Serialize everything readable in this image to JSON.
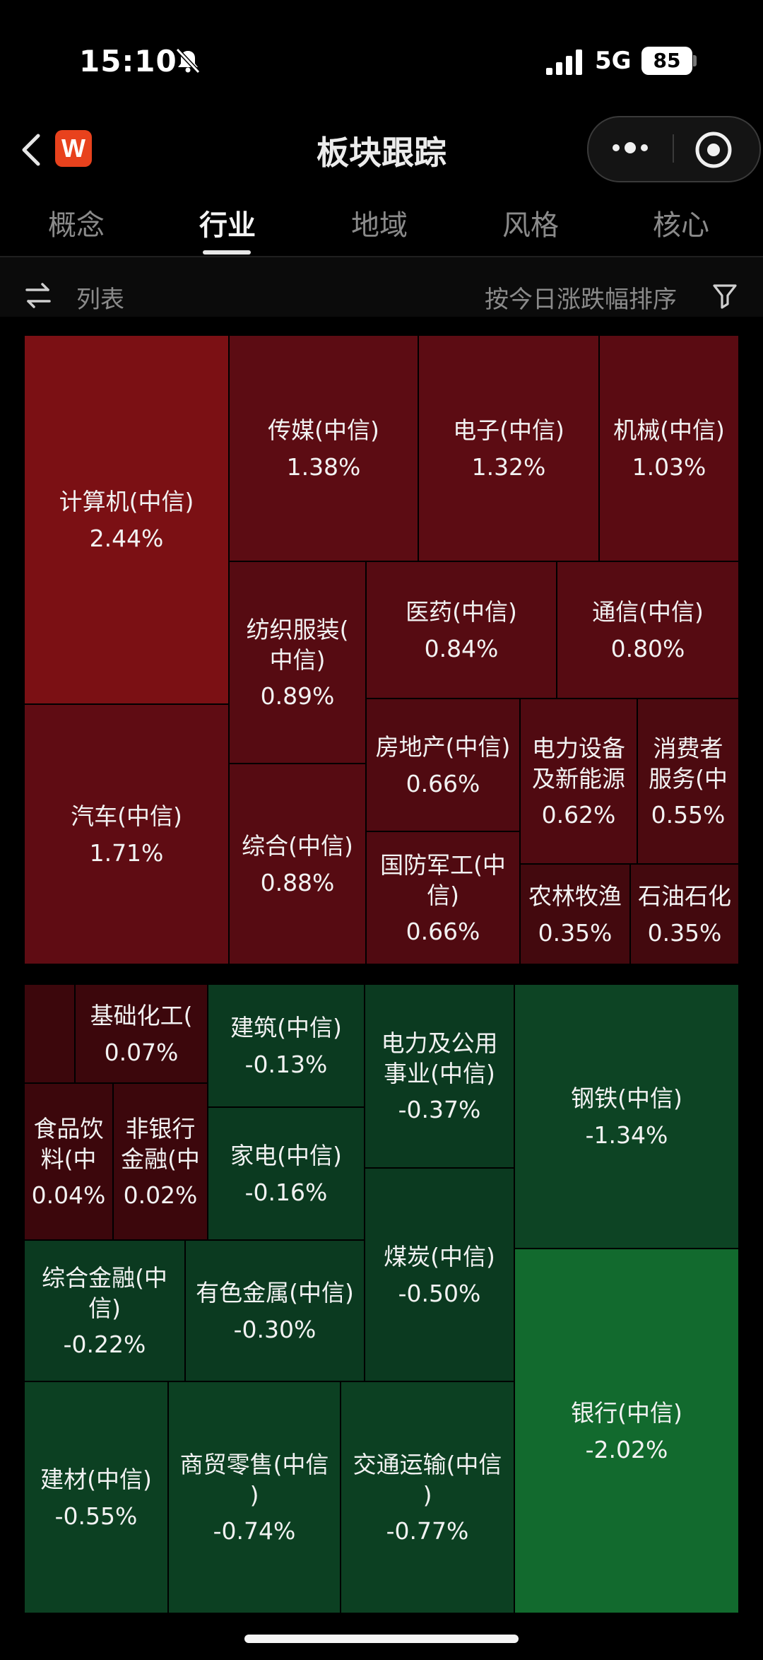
{
  "status_bar": {
    "time": "15:10",
    "network": "5G",
    "battery": "85"
  },
  "header": {
    "title": "板块跟踪",
    "logo_letter": "W"
  },
  "tabs": [
    {
      "label": "概念",
      "active": false
    },
    {
      "label": "行业",
      "active": true
    },
    {
      "label": "地域",
      "active": false
    },
    {
      "label": "风格",
      "active": false
    },
    {
      "label": "核心",
      "active": false
    }
  ],
  "toolbar": {
    "view_label": "列表",
    "sort_label": "按今日涨跌幅排序"
  },
  "colors": {
    "up_strong": "#7b1014",
    "up": "#5a0b12",
    "down": "#0b3f22",
    "down_strong": "#126a2e"
  },
  "sectors": [
    {
      "name": "计算机(中信)",
      "change": "2.44%"
    },
    {
      "name": "传媒(中信)",
      "change": "1.38%"
    },
    {
      "name": "电子(中信)",
      "change": "1.32%"
    },
    {
      "name": "机械(中信)",
      "change": "1.03%"
    },
    {
      "name": "纺织服装(\n中信)",
      "change": "0.89%"
    },
    {
      "name": "医药(中信)",
      "change": "0.84%"
    },
    {
      "name": "通信(中信)",
      "change": "0.80%"
    },
    {
      "name": "汽车(中信)",
      "change": "1.71%"
    },
    {
      "name": "综合(中信)",
      "change": "0.88%"
    },
    {
      "name": "房地产(中信)",
      "change": "0.66%"
    },
    {
      "name": "电力设备\n及新能源",
      "change": "0.62%"
    },
    {
      "name": "消费者\n服务(中",
      "change": "0.55%"
    },
    {
      "name": "国防军工(中\n信)",
      "change": "0.66%"
    },
    {
      "name": "农林牧渔",
      "change": "0.35%"
    },
    {
      "name": "石油石化",
      "change": "0.35%"
    },
    {
      "name": "",
      "change": ""
    },
    {
      "name": "基础化工(",
      "change": "0.07%"
    },
    {
      "name": "建筑(中信)",
      "change": "-0.13%"
    },
    {
      "name": "电力及公用\n事业(中信)",
      "change": "-0.37%"
    },
    {
      "name": "钢铁(中信)",
      "change": "-1.34%"
    },
    {
      "name": "食品饮\n料(中",
      "change": "0.04%"
    },
    {
      "name": "非银行\n金融(中",
      "change": "0.02%"
    },
    {
      "name": "家电(中信)",
      "change": "-0.16%"
    },
    {
      "name": "煤炭(中信)",
      "change": "-0.50%"
    },
    {
      "name": "综合金融(中\n信)",
      "change": "-0.22%"
    },
    {
      "name": "有色金属(中信)",
      "change": "-0.30%"
    },
    {
      "name": "银行(中信)",
      "change": "-2.02%"
    },
    {
      "name": "建材(中信)",
      "change": "-0.55%"
    },
    {
      "name": "商贸零售(中信\n)",
      "change": "-0.74%"
    },
    {
      "name": "交通运输(中信\n)",
      "change": "-0.77%"
    }
  ]
}
